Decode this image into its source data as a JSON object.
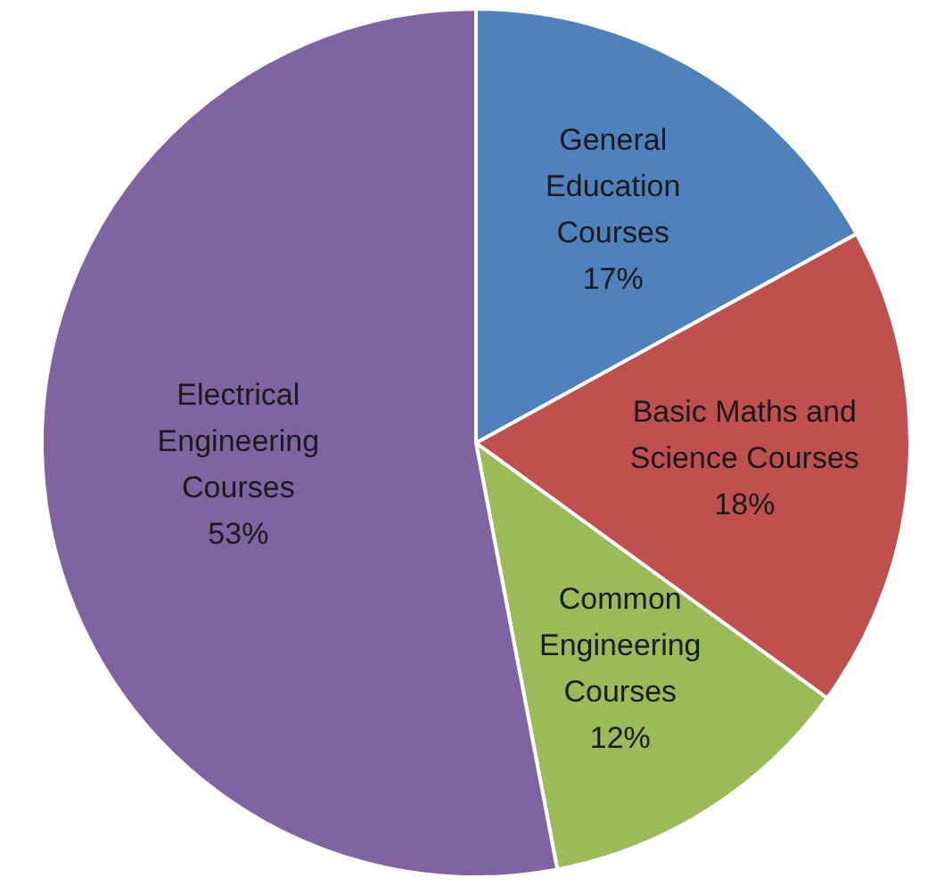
{
  "chart_data": {
    "type": "pie",
    "categories": [
      "General Education Courses",
      "Basic Maths and Science Courses",
      "Common Engineering Courses",
      "Electrical Engineering Courses"
    ],
    "values": [
      17,
      18,
      12,
      53
    ],
    "colors": [
      "#4f81bd",
      "#c0504d",
      "#9bbb59",
      "#8064a2"
    ],
    "value_labels": [
      "17%",
      "18%",
      "12%",
      "53%"
    ],
    "legend": false
  }
}
